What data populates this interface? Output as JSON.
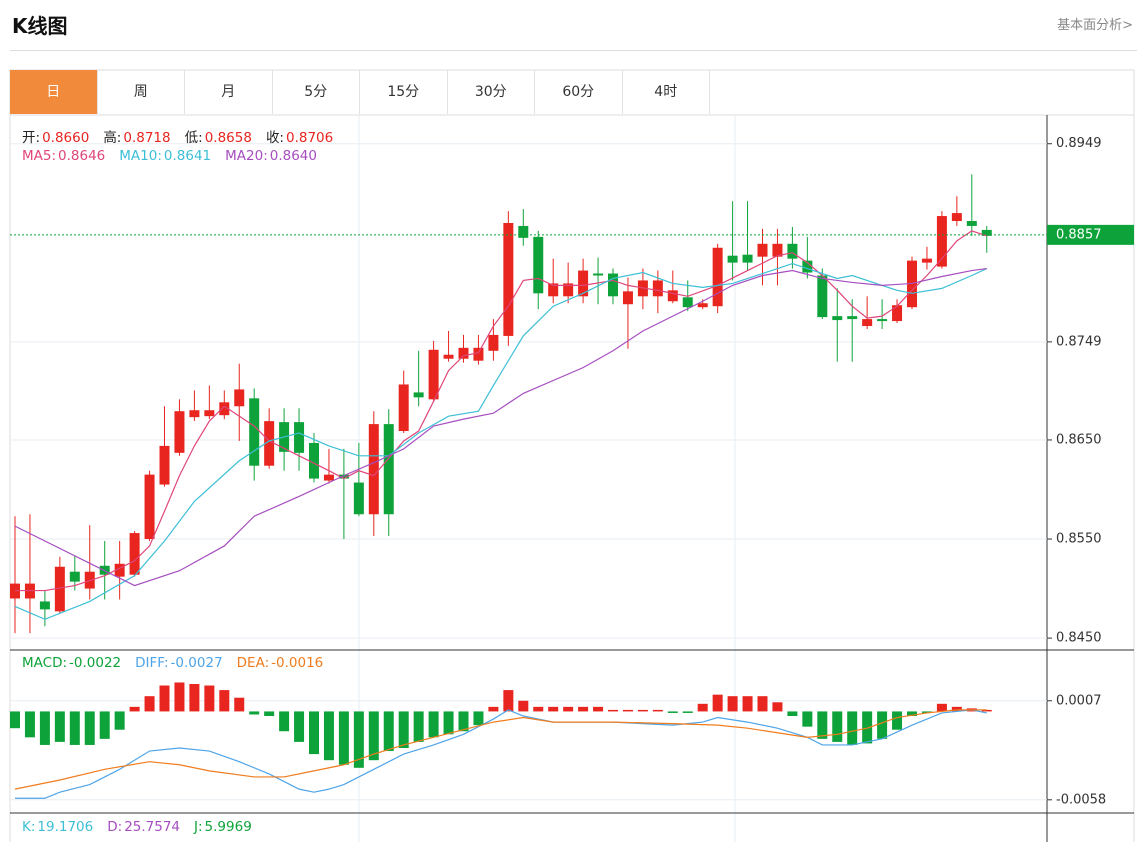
{
  "header": {
    "title": "K线图",
    "link": "基本面分析>"
  },
  "tabs": [
    "日",
    "周",
    "月",
    "5分",
    "15分",
    "30分",
    "60分",
    "4时"
  ],
  "chart_data": [
    {
      "type": "candlestick",
      "legend": [
        {
          "label": "开:",
          "value": "0.8660"
        },
        {
          "label": "高:",
          "value": "0.8718"
        },
        {
          "label": "低:",
          "value": "0.8658"
        },
        {
          "label": "收:",
          "value": "0.8706"
        }
      ],
      "open": [
        0.849,
        0.849,
        0.8487,
        0.8477,
        0.8517,
        0.85,
        0.8523,
        0.8512,
        0.8514,
        0.855,
        0.8605,
        0.8637,
        0.8673,
        0.8674,
        0.8675,
        0.8684,
        0.8692,
        0.8624,
        0.8668,
        0.8668,
        0.8647,
        0.8609,
        0.8615,
        0.8607,
        0.8575,
        0.8666,
        0.8659,
        0.8698,
        0.8691,
        0.8732,
        0.8732,
        0.873,
        0.874,
        0.8755,
        0.8866,
        0.8855,
        0.8795,
        0.8795,
        0.8795,
        0.8818,
        0.8818,
        0.8787,
        0.8795,
        0.8795,
        0.879,
        0.8794,
        0.8784,
        0.8785,
        0.8836,
        0.8837,
        0.8835,
        0.8835,
        0.8848,
        0.8831,
        0.8816,
        0.8775,
        0.8775,
        0.8765,
        0.8772,
        0.877,
        0.8784,
        0.8829,
        0.8825,
        0.8871,
        0.8871,
        0.8862
      ],
      "high": [
        0.8573,
        0.8575,
        0.8498,
        0.8532,
        0.8533,
        0.8564,
        0.8548,
        0.8548,
        0.8558,
        0.8619,
        0.8684,
        0.8691,
        0.87,
        0.8705,
        0.87,
        0.8727,
        0.8702,
        0.8682,
        0.8682,
        0.8682,
        0.8657,
        0.8641,
        0.8641,
        0.8647,
        0.8679,
        0.8681,
        0.872,
        0.874,
        0.875,
        0.876,
        0.8756,
        0.8756,
        0.8772,
        0.8881,
        0.8883,
        0.8861,
        0.8833,
        0.8829,
        0.8833,
        0.8834,
        0.8823,
        0.8814,
        0.8823,
        0.8821,
        0.8821,
        0.8811,
        0.8792,
        0.8848,
        0.8891,
        0.8891,
        0.8863,
        0.8863,
        0.8865,
        0.8855,
        0.8823,
        0.8803,
        0.8792,
        0.8795,
        0.8792,
        0.8792,
        0.8835,
        0.8845,
        0.8881,
        0.8896,
        0.8918,
        0.8866
      ],
      "low": [
        0.8455,
        0.8455,
        0.8462,
        0.8475,
        0.8498,
        0.8489,
        0.8489,
        0.8489,
        0.8512,
        0.8548,
        0.8603,
        0.8634,
        0.8669,
        0.8671,
        0.8671,
        0.8649,
        0.8609,
        0.8621,
        0.8619,
        0.8619,
        0.8607,
        0.8606,
        0.855,
        0.8573,
        0.8553,
        0.8553,
        0.8657,
        0.8684,
        0.8689,
        0.8729,
        0.8728,
        0.8726,
        0.873,
        0.8745,
        0.8846,
        0.8782,
        0.8788,
        0.8788,
        0.8788,
        0.8787,
        0.8787,
        0.8742,
        0.8782,
        0.8778,
        0.8788,
        0.878,
        0.8782,
        0.8778,
        0.8811,
        0.8821,
        0.8806,
        0.8806,
        0.8823,
        0.8813,
        0.8772,
        0.8729,
        0.8729,
        0.8762,
        0.8762,
        0.8768,
        0.8782,
        0.8822,
        0.8823,
        0.8866,
        0.8856,
        0.8839
      ],
      "close": [
        0.8505,
        0.8505,
        0.8479,
        0.8522,
        0.8507,
        0.8517,
        0.8514,
        0.8525,
        0.8556,
        0.8615,
        0.8644,
        0.8679,
        0.868,
        0.868,
        0.8688,
        0.8701,
        0.8624,
        0.8669,
        0.8638,
        0.8637,
        0.8611,
        0.8615,
        0.8611,
        0.8575,
        0.8666,
        0.8575,
        0.8706,
        0.8693,
        0.8741,
        0.8736,
        0.8743,
        0.8743,
        0.8756,
        0.8869,
        0.8854,
        0.8798,
        0.8808,
        0.8808,
        0.8821,
        0.8816,
        0.8795,
        0.88,
        0.8811,
        0.8811,
        0.8801,
        0.8784,
        0.8788,
        0.8844,
        0.8829,
        0.8829,
        0.8848,
        0.8848,
        0.8833,
        0.8819,
        0.8774,
        0.8771,
        0.8772,
        0.8772,
        0.877,
        0.8786,
        0.8831,
        0.8833,
        0.8876,
        0.8879,
        0.8866,
        0.8856
      ],
      "up_color": "#e8251f",
      "down_color": "#0ea33a",
      "lines": [
        {
          "label": "MA5:",
          "value": "0.8646",
          "color": "#e0457b",
          "x": [
            0,
            2,
            4,
            6,
            8,
            9,
            10,
            11,
            12,
            13,
            14,
            15,
            16,
            17,
            19,
            21,
            22,
            23,
            24,
            26,
            27,
            28,
            29,
            30,
            31,
            32,
            33,
            34,
            35,
            36,
            38,
            40,
            41,
            43,
            45,
            47,
            49,
            51,
            52,
            53,
            54,
            55,
            56,
            57,
            58,
            59,
            60,
            61,
            62,
            63,
            64,
            65
          ],
          "values": [
            0.8498,
            0.8498,
            0.8503,
            0.8513,
            0.8528,
            0.8543,
            0.8578,
            0.8614,
            0.8644,
            0.8669,
            0.8684,
            0.8674,
            0.8664,
            0.8649,
            0.8634,
            0.8619,
            0.8611,
            0.8619,
            0.8614,
            0.8649,
            0.8659,
            0.8689,
            0.872,
            0.8735,
            0.8738,
            0.8765,
            0.8785,
            0.8811,
            0.8813,
            0.8806,
            0.8806,
            0.8811,
            0.8806,
            0.8801,
            0.8795,
            0.8806,
            0.8821,
            0.8836,
            0.8839,
            0.8829,
            0.8816,
            0.8801,
            0.8785,
            0.8773,
            0.8775,
            0.8785,
            0.8801,
            0.8816,
            0.8833,
            0.8851,
            0.8861,
            0.8856
          ]
        },
        {
          "label": "MA10:",
          "value": "0.8641",
          "color": "#3cbfd6",
          "x": [
            0,
            2,
            5,
            8,
            10,
            12,
            15,
            17,
            19,
            21,
            23,
            25,
            27,
            29,
            31,
            32,
            34,
            36,
            38,
            40,
            42,
            44,
            46,
            48,
            50,
            52,
            53,
            55,
            56,
            58,
            59,
            60,
            62,
            64,
            65
          ],
          "values": [
            0.8482,
            0.8469,
            0.8487,
            0.8513,
            0.8548,
            0.8588,
            0.8629,
            0.8649,
            0.8657,
            0.8644,
            0.8634,
            0.8634,
            0.8657,
            0.8674,
            0.8679,
            0.8705,
            0.8755,
            0.8785,
            0.8798,
            0.8813,
            0.8819,
            0.8808,
            0.8804,
            0.8808,
            0.8818,
            0.8828,
            0.8823,
            0.8813,
            0.8816,
            0.8806,
            0.8801,
            0.8798,
            0.8803,
            0.8816,
            0.8823
          ]
        },
        {
          "label": "MA20:",
          "value": "0.8640",
          "color": "#a64ec0",
          "x": [
            0,
            8,
            11,
            14,
            16,
            19,
            22,
            24,
            26,
            28,
            30,
            32,
            34,
            36,
            38,
            40,
            42,
            44,
            46,
            48,
            50,
            52,
            54,
            56,
            58,
            60,
            62,
            64,
            65
          ],
          "values": [
            0.8563,
            0.8503,
            0.8518,
            0.8543,
            0.8573,
            0.8593,
            0.8614,
            0.8627,
            0.8641,
            0.8664,
            0.8671,
            0.8677,
            0.8697,
            0.871,
            0.8723,
            0.874,
            0.876,
            0.8775,
            0.879,
            0.8806,
            0.8816,
            0.8821,
            0.8813,
            0.8809,
            0.8806,
            0.8808,
            0.8815,
            0.8821,
            0.8823
          ]
        }
      ],
      "last_price": 0.8857,
      "last_color": "#0ea33a",
      "ylim": [
        0.844,
        0.8978
      ],
      "yticks": [
        0.8949,
        0.8749,
        {
          "value": 0.865,
          "label": "0.8650"
        },
        {
          "value": 0.855,
          "label": "0.8550"
        },
        {
          "value": 0.845,
          "label": "0.8450"
        }
      ],
      "grid": true
    },
    {
      "type": "macd",
      "legend": [
        {
          "label": "MACD:",
          "value": "-0.0022",
          "color": "#0ea33a"
        }
      ],
      "histogram": [
        -0.0011,
        -0.0017,
        -0.0022,
        -0.002,
        -0.0022,
        -0.0022,
        -0.0018,
        -0.0012,
        0.0003,
        0.001,
        0.0017,
        0.0019,
        0.0018,
        0.0017,
        0.0014,
        0.0009,
        -0.0002,
        -0.0003,
        -0.0013,
        -0.002,
        -0.0028,
        -0.0032,
        -0.0035,
        -0.0037,
        -0.0032,
        -0.0026,
        -0.0024,
        -0.002,
        -0.0017,
        -0.0015,
        -0.0013,
        -0.0009,
        0.0003,
        0.0014,
        0.0007,
        0.0003,
        0.0003,
        0.0003,
        0.0003,
        0.0003,
        0.0001,
        0.0001,
        0.0001,
        0.0001,
        -0.0001,
        -0.0001,
        0.0005,
        0.0011,
        0.001,
        0.001,
        0.001,
        0.0006,
        -0.0003,
        -0.001,
        -0.0018,
        -0.002,
        -0.0022,
        -0.0021,
        -0.0018,
        -0.0012,
        -0.0003,
        -0.0001,
        0.0005,
        0.0003,
        0.0002,
        0.0001
      ],
      "up_color": "#e8251f",
      "down_color": "#0ea33a",
      "lines": [
        {
          "label": "DIFF:",
          "value": "-0.0027",
          "color": "#4ea4e8",
          "x": [
            0,
            2,
            3,
            5,
            7,
            9,
            11,
            13,
            15,
            17,
            19,
            20,
            21,
            22,
            24,
            26,
            28,
            30,
            32,
            33,
            34,
            36,
            40,
            44,
            46,
            47,
            49,
            51,
            53,
            54,
            56,
            58,
            60,
            62,
            64,
            65
          ],
          "values": [
            -0.0057,
            -0.0057,
            -0.0053,
            -0.0048,
            -0.0038,
            -0.0026,
            -0.0024,
            -0.0026,
            -0.0033,
            -0.0041,
            -0.0051,
            -0.0053,
            -0.0051,
            -0.0048,
            -0.0038,
            -0.0028,
            -0.0022,
            -0.0015,
            -0.0005,
            0.0001,
            -0.0003,
            -0.0007,
            -0.0007,
            -0.0009,
            -0.0007,
            -0.0004,
            -0.0007,
            -0.0011,
            -0.0017,
            -0.0022,
            -0.0022,
            -0.0018,
            -0.0009,
            -0.0001,
            0.0001,
            -0.0001
          ]
        },
        {
          "label": "DEA:",
          "value": "-0.0016",
          "color": "#f07c1e",
          "x": [
            0,
            3,
            6,
            9,
            11,
            13,
            16,
            18,
            20,
            22,
            24,
            26,
            28,
            30,
            32,
            34,
            36,
            40,
            44,
            47,
            49,
            51,
            53,
            55,
            57,
            59,
            61,
            63,
            65
          ],
          "values": [
            -0.0051,
            -0.0045,
            -0.0038,
            -0.0033,
            -0.0035,
            -0.0039,
            -0.0043,
            -0.0043,
            -0.0039,
            -0.0035,
            -0.0028,
            -0.0022,
            -0.0017,
            -0.0012,
            -0.0007,
            -0.0004,
            -0.0007,
            -0.0007,
            -0.0008,
            -0.0009,
            -0.0011,
            -0.0014,
            -0.0017,
            -0.0015,
            -0.0011,
            -0.0004,
            -0.0001,
            0.0001,
            0.0001
          ]
        }
      ],
      "ylim": [
        -0.0066,
        0.0039
      ],
      "yticks": [
        0.0007,
        -0.0058
      ],
      "grid": true
    },
    {
      "type": "kdj",
      "legend": [
        {
          "label": "K:",
          "value": "19.1706",
          "color": "#3cbfd6"
        },
        {
          "label": "D:",
          "value": "25.7574",
          "color": "#a64ec0"
        },
        {
          "label": "J:",
          "value": "5.9969",
          "color": "#0ea33a"
        }
      ]
    }
  ]
}
